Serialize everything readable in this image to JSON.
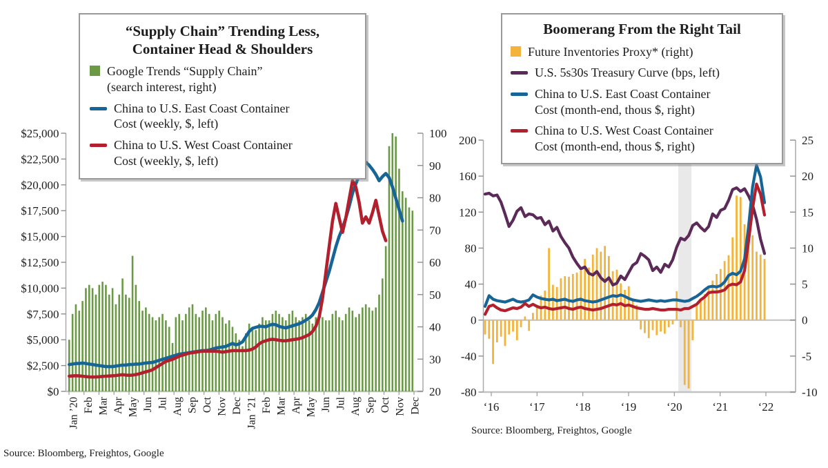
{
  "chart_data": [
    {
      "type": "bar+line",
      "title": "“Supply Chain” Trending Less, Container Head & Shoulders",
      "title_lines": [
        "“Supply Chain” Trending Less,",
        "Container Head & Shoulders"
      ],
      "source": "Source: Bloomberg, Freightos, Google",
      "x_axis": {
        "unit": "weekly, Jan 2020 – Dec 2021",
        "tick_labels": [
          "Jan ’20",
          "Feb",
          "Mar",
          "Apr",
          "May",
          "Jun",
          "Jul",
          "Aug",
          "Sep",
          "Oct",
          "Nov",
          "Dec",
          "Jan ’21",
          "Feb",
          "Mar",
          "Apr",
          "May",
          "Jun",
          "Jul",
          "Aug",
          "Sep",
          "Oct",
          "Nov",
          "Dec"
        ]
      },
      "left_axis": {
        "min": 0,
        "max": 25000,
        "tick_labels": [
          "$25,000",
          "$22,500",
          "$20,000",
          "$17,500",
          "$15,000",
          "$12,500",
          "$10,000",
          "$7,500",
          "$5,000",
          "$2,500",
          "$0"
        ]
      },
      "right_axis": {
        "min": 20,
        "max": 100,
        "tick_labels": [
          "100",
          "90",
          "80",
          "70",
          "60",
          "50",
          "40",
          "30",
          "20"
        ]
      },
      "bars": {
        "name": "Google Trends “Supply Chain” (search interest, right)",
        "axis": "right",
        "color": "#6a9a45",
        "values": [
          36,
          44,
          47,
          45,
          48,
          52,
          53,
          52,
          50,
          53,
          54,
          53,
          50,
          52,
          47,
          50,
          55,
          50,
          49,
          62,
          53,
          48,
          45,
          46,
          44,
          43,
          42,
          43,
          44,
          42,
          40,
          35,
          43,
          44,
          42,
          44,
          46,
          47,
          44,
          43,
          45,
          46,
          44,
          42,
          44,
          45,
          43,
          41,
          42,
          40,
          38,
          36,
          34,
          38,
          41,
          40,
          39,
          41,
          43,
          42,
          42,
          44,
          45,
          44,
          43,
          42,
          44,
          45,
          43,
          42,
          43,
          44,
          42,
          41,
          43,
          44,
          43,
          42,
          42,
          44,
          45,
          43,
          42,
          44,
          46,
          45,
          43,
          44,
          46,
          47,
          46,
          45,
          46,
          50,
          55,
          65,
          96,
          100,
          99,
          89,
          82,
          80,
          77,
          76
        ]
      },
      "series": [
        {
          "name": "China to U.S. East Coast Container Cost (weekly, $, left)",
          "axis": "left",
          "color": "#176496",
          "values": [
            2600,
            2650,
            2700,
            2700,
            2750,
            2700,
            2650,
            2600,
            2550,
            2500,
            2450,
            2400,
            2400,
            2400,
            2450,
            2500,
            2550,
            2550,
            2600,
            2600,
            2650,
            2650,
            2700,
            2750,
            2780,
            2800,
            2900,
            3000,
            3100,
            3200,
            3300,
            3400,
            3500,
            3600,
            3650,
            3700,
            3750,
            3800,
            3850,
            3900,
            3950,
            3950,
            4000,
            4100,
            4200,
            4250,
            4300,
            4350,
            4500,
            4650,
            4500,
            4600,
            4800,
            5300,
            5800,
            6100,
            6200,
            6300,
            6300,
            6250,
            6400,
            6500,
            6450,
            6300,
            6200,
            6150,
            6250,
            6350,
            6450,
            6550,
            6700,
            6900,
            7100,
            7400,
            7900,
            8600,
            9600,
            10600,
            11600,
            12800,
            14000,
            15000,
            15800,
            16800,
            17900,
            19200,
            20100,
            20900,
            21700,
            22200,
            21900,
            21500,
            21000,
            20400,
            20800,
            21100,
            20700,
            19800,
            18700,
            17600,
            16500,
            null,
            null,
            null
          ]
        },
        {
          "name": "China to U.S. West Coast Container Cost (weekly, $, left)",
          "axis": "left",
          "color": "#b2202e",
          "values": [
            1480,
            1500,
            1520,
            1500,
            1470,
            1430,
            1400,
            1390,
            1400,
            1420,
            1450,
            1470,
            1490,
            1510,
            1540,
            1580,
            1620,
            1580,
            1560,
            1580,
            1630,
            1700,
            1800,
            1900,
            1980,
            2100,
            2300,
            2500,
            2700,
            2900,
            3000,
            3100,
            3250,
            3400,
            3500,
            3600,
            3700,
            3750,
            3800,
            3850,
            3900,
            3900,
            3900,
            3900,
            3900,
            3850,
            3800,
            3850,
            3900,
            3950,
            3950,
            3950,
            3950,
            3950,
            4000,
            4100,
            4300,
            4600,
            4800,
            4900,
            5000,
            5050,
            5000,
            4950,
            4900,
            4900,
            4950,
            5000,
            5050,
            5100,
            5200,
            5350,
            5500,
            5800,
            6300,
            7200,
            9000,
            11500,
            14000,
            16500,
            18200,
            16800,
            15400,
            16800,
            18600,
            20400,
            19800,
            18300,
            16300,
            16900,
            16300,
            17300,
            18500,
            17000,
            15500,
            14600,
            null,
            null,
            null,
            null,
            null,
            null,
            null,
            null
          ]
        }
      ],
      "legend": [
        {
          "marker": "square",
          "color": "#6a9a45",
          "label_lines": [
            "Google Trends “Supply Chain”",
            "(search interest, right)"
          ]
        },
        {
          "marker": "line",
          "color": "#176496",
          "label_lines": [
            "China to U.S. East Coast Container",
            "Cost (weekly, $, left)"
          ]
        },
        {
          "marker": "line",
          "color": "#b2202e",
          "label_lines": [
            "China to U.S. West Coast Container",
            "Cost (weekly, $, left)"
          ]
        }
      ]
    },
    {
      "type": "bar+line",
      "title": "Boomerang From the Right Tail",
      "title_lines": [
        "Boomerang From the Right Tail"
      ],
      "source": "Source: Bloomberg, Freightos, Google",
      "x_axis": {
        "unit": "monthly, Jan 2016 – Nov 2021",
        "tick_labels": [
          "‘16",
          "‘17",
          "‘18",
          "‘19",
          "‘20",
          "‘21",
          "‘22"
        ]
      },
      "left_axis": {
        "min": -80,
        "max": 200,
        "tick_labels": [
          "200",
          "160",
          "120",
          "80",
          "40",
          "0",
          "-40",
          "-80"
        ]
      },
      "right_axis": {
        "min": -10,
        "max": 25,
        "tick_labels": [
          "25",
          "20",
          "15",
          "10",
          "5",
          "0",
          "-5",
          "-10"
        ]
      },
      "recession_band": {
        "x_start_month_index": 48.4,
        "x_end_month_index": 51.7,
        "color": "#e9e9e9"
      },
      "bars": {
        "name": "Future Inventories Proxy* (right)",
        "axis": "right",
        "color": "#f4b43c",
        "values": [
          -2.0,
          -2.6,
          -6.1,
          -3.1,
          -2.3,
          -3.6,
          -2.0,
          -1.6,
          -2.8,
          -1.0,
          0.5,
          -1.5,
          1.0,
          1.8,
          3.4,
          4.1,
          10.0,
          4.9,
          4.6,
          5.8,
          6.1,
          6.0,
          6.4,
          6.6,
          6.9,
          8.5,
          7.3,
          9.1,
          10.0,
          9.5,
          10.3,
          8.9,
          6.8,
          7.0,
          5.1,
          4.2,
          4.7,
          2.8,
          2.1,
          -1.3,
          -1.8,
          -2.5,
          -1.4,
          -2.1,
          -1.6,
          -1.9,
          -1.0,
          -0.6,
          4.0,
          -1.0,
          -9.0,
          -9.5,
          -2.8,
          2.0,
          2.7,
          3.6,
          4.4,
          5.5,
          6.4,
          7.1,
          8.2,
          9.0,
          11.5,
          17.3,
          17.1,
          13.3,
          12.2,
          11.8,
          9.5,
          9.1,
          8.5
        ]
      },
      "series": [
        {
          "name": "U.S. 5s30s Treasury Curve (bps, left)",
          "axis": "left",
          "color": "#5c2a58",
          "values": [
            140,
            141,
            138,
            139,
            131,
            118,
            104,
            111,
            121,
            125,
            115,
            118,
            117,
            113,
            114,
            106,
            110,
            99,
            103,
            93,
            86,
            80,
            70,
            63,
            57,
            59,
            52,
            50,
            54,
            47,
            43,
            47,
            39,
            41,
            49,
            45,
            53,
            61,
            64,
            74,
            71,
            67,
            55,
            59,
            53,
            62,
            59,
            67,
            81,
            91,
            89,
            94,
            105,
            108,
            103,
            99,
            104,
            118,
            114,
            122,
            124,
            133,
            145,
            147,
            143,
            146,
            138,
            128,
            112,
            90,
            74
          ]
        },
        {
          "name": "China to U.S. East Coast Container Cost (month-end, thous $, right)",
          "axis": "right",
          "color": "#176496",
          "values": [
            1.9,
            3.4,
            2.9,
            2.7,
            2.6,
            2.5,
            2.7,
            2.9,
            2.6,
            2.5,
            2.6,
            2.8,
            3.5,
            3.2,
            3.0,
            2.9,
            2.8,
            2.9,
            2.7,
            2.8,
            2.9,
            2.7,
            2.6,
            2.8,
            2.9,
            2.7,
            2.6,
            2.5,
            2.6,
            2.8,
            3.0,
            3.2,
            3.4,
            3.3,
            3.5,
            3.3,
            3.0,
            2.8,
            2.7,
            2.6,
            2.7,
            2.8,
            2.7,
            2.6,
            2.7,
            2.6,
            2.7,
            2.8,
            2.8,
            2.7,
            2.6,
            2.7,
            3.0,
            3.3,
            3.7,
            4.2,
            4.6,
            4.7,
            4.6,
            4.8,
            5.3,
            6.2,
            6.5,
            6.3,
            6.8,
            8.5,
            13.0,
            18.5,
            21.5,
            19.9,
            16.3
          ]
        },
        {
          "name": "China to U.S. West Coast Container Cost (month-end, thous $, right)",
          "axis": "right",
          "color": "#b2202e",
          "values": [
            0.8,
            1.9,
            2.1,
            1.7,
            1.4,
            1.3,
            1.5,
            1.7,
            1.6,
            1.8,
            2.3,
            1.9,
            2.2,
            1.9,
            1.7,
            1.8,
            1.6,
            1.5,
            1.6,
            1.7,
            1.8,
            1.6,
            1.5,
            1.7,
            1.8,
            1.6,
            1.5,
            1.4,
            1.5,
            1.6,
            1.8,
            2.0,
            2.2,
            2.1,
            2.3,
            2.0,
            2.1,
            1.9,
            1.7,
            1.6,
            1.5,
            1.5,
            1.6,
            1.5,
            1.4,
            1.4,
            1.5,
            1.5,
            1.5,
            1.4,
            1.6,
            1.6,
            1.9,
            2.2,
            2.8,
            3.2,
            3.8,
            3.9,
            3.9,
            4.0,
            4.2,
            4.8,
            5.0,
            4.9,
            5.3,
            6.9,
            11.0,
            15.5,
            18.9,
            17.5,
            14.6
          ]
        }
      ],
      "legend": [
        {
          "marker": "square",
          "color": "#f4b43c",
          "label_lines": [
            "Future Inventories Proxy* (right)"
          ]
        },
        {
          "marker": "line",
          "color": "#5c2a58",
          "label_lines": [
            "U.S. 5s30s Treasury Curve (bps, left)"
          ]
        },
        {
          "marker": "line",
          "color": "#176496",
          "label_lines": [
            "China to U.S. East Coast Container",
            "Cost (month-end, thous $, right)"
          ]
        },
        {
          "marker": "line",
          "color": "#b2202e",
          "label_lines": [
            "China to U.S. West Coast Container",
            "Cost (month-end, thous $, right)"
          ]
        }
      ]
    }
  ]
}
